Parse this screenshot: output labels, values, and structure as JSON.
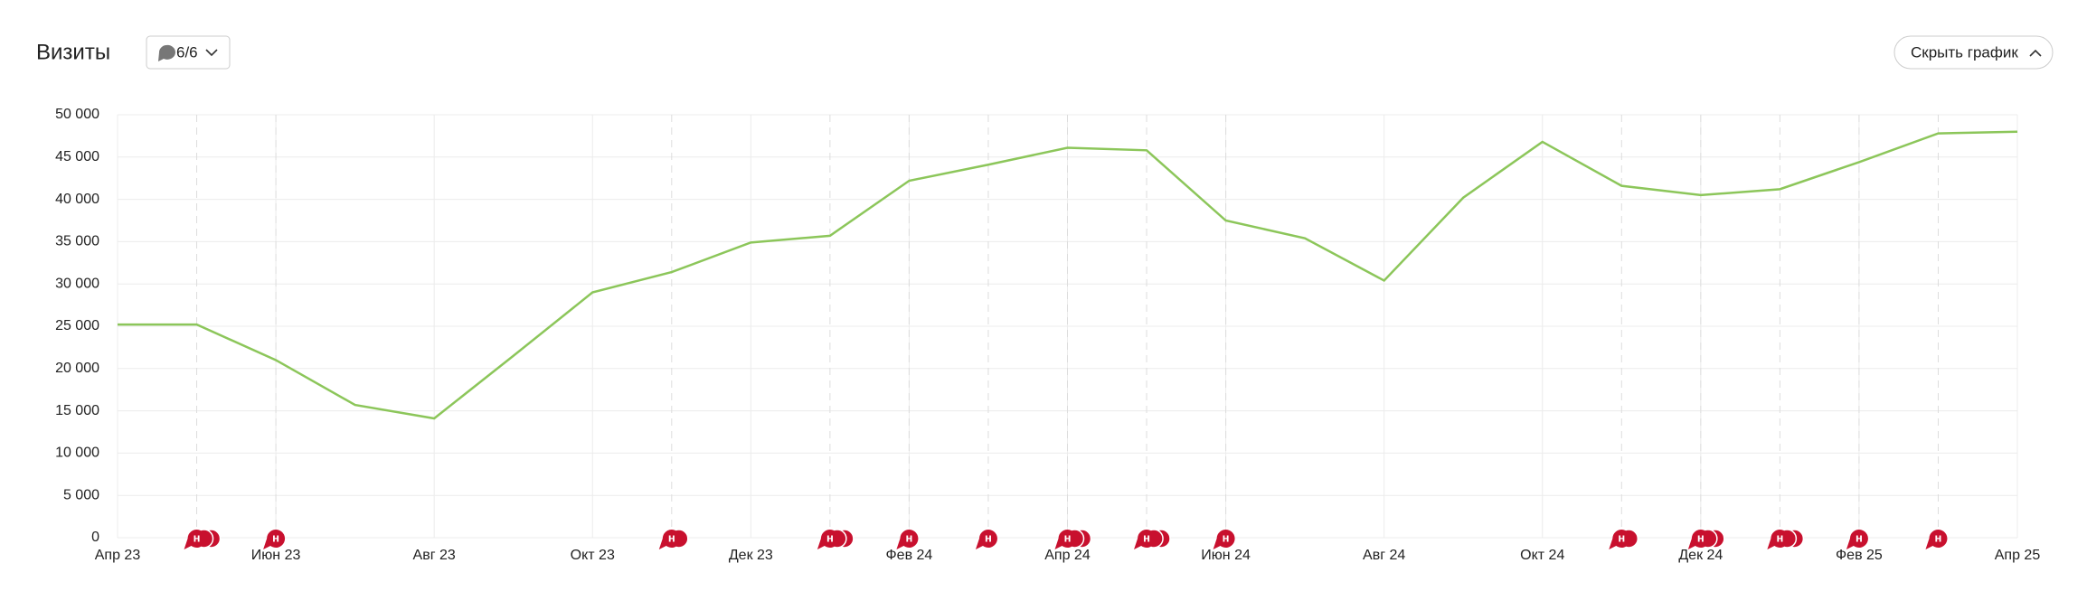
{
  "header": {
    "title": "Визиты",
    "filter_button": "6/6",
    "toggle_button": "Скрыть график"
  },
  "chart_data": {
    "type": "line",
    "categories": [
      "Апр 23",
      null,
      "Июн 23",
      null,
      "Авг 23",
      null,
      "Окт 23",
      null,
      "Дек 23",
      null,
      "Фев 24",
      null,
      "Апр 24",
      null,
      "Июн 24",
      null,
      "Авг 24",
      null,
      "Окт 24",
      null,
      "Дек 24",
      null,
      "Фев 25",
      null,
      "Апр 25"
    ],
    "series": [
      {
        "name": "Визиты",
        "color": "#8cc65a",
        "values": [
          25200,
          25200,
          21000,
          15700,
          14100,
          21500,
          29000,
          31400,
          34900,
          35700,
          42200,
          44100,
          46100,
          45800,
          37500,
          35400,
          30400,
          40200,
          46800,
          41600,
          40500,
          41200,
          44400,
          47800,
          48000
        ]
      }
    ],
    "ylim": [
      0,
      50000
    ],
    "yticks": [
      0,
      {
        "value": 5000,
        "label": "5 000"
      },
      {
        "value": 10000,
        "label": "10 000"
      },
      {
        "value": 15000,
        "label": "15 000"
      },
      {
        "value": 20000,
        "label": "20 000"
      },
      {
        "value": 25000,
        "label": "25 000"
      },
      {
        "value": 30000,
        "label": "30 000"
      },
      {
        "value": 35000,
        "label": "35 000"
      },
      {
        "value": 40000,
        "label": "40 000"
      },
      {
        "value": 45000,
        "label": "45 000"
      },
      {
        "value": 50000,
        "label": "50 000"
      }
    ],
    "grid": true,
    "annotation_markers": [
      {
        "index": 1,
        "count": 3,
        "label": "н"
      },
      {
        "index": 2,
        "count": 1,
        "label": "н"
      },
      {
        "index": 7,
        "count": 2,
        "label": "н"
      },
      {
        "index": 9,
        "count": 3,
        "label": "н"
      },
      {
        "index": 10,
        "count": 1,
        "label": "н"
      },
      {
        "index": 11,
        "count": 1,
        "label": "н"
      },
      {
        "index": 12,
        "count": 3,
        "label": "н"
      },
      {
        "index": 13,
        "count": 3,
        "label": "н"
      },
      {
        "index": 14,
        "count": 1,
        "label": "н"
      },
      {
        "index": 19,
        "count": 2,
        "label": "н"
      },
      {
        "index": 20,
        "count": 3,
        "label": "н"
      },
      {
        "index": 21,
        "count": 3,
        "label": "н"
      },
      {
        "index": 22,
        "count": 1,
        "label": "н"
      },
      {
        "index": 23,
        "count": 1,
        "label": "н"
      }
    ]
  }
}
